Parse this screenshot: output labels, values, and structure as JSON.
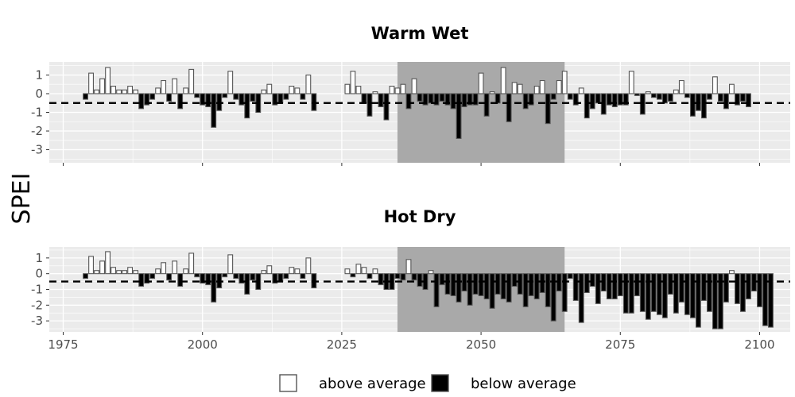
{
  "chart_data": {
    "type": "bar",
    "ylabel": "SPEI",
    "x_ticks": [
      1975,
      2000,
      2025,
      2050,
      2075,
      2100
    ],
    "y_ticks": [
      1,
      0,
      -1,
      -2,
      -3
    ],
    "ylim": [
      -3.7,
      1.7
    ],
    "xlim": [
      1972.5,
      2105.5
    ],
    "threshold": -0.5,
    "highlight_range": [
      2035,
      2065
    ],
    "legend": {
      "position": "bottom",
      "entries": [
        {
          "label": "above average",
          "fill": "#ffffff"
        },
        {
          "label": "below average",
          "fill": "#000000"
        }
      ]
    },
    "colors": {
      "above": "#ffffff",
      "below": "#000000",
      "bar_border": "#555555",
      "panel_bg": "#ebebeb",
      "highlight": "#a9a9a9",
      "grid": "#ffffff"
    },
    "panels": [
      {
        "title": "Warm Wet",
        "segments": [
          {
            "start": 1979,
            "values": [
              -0.3,
              1.1,
              0.2,
              0.8,
              1.4,
              0.4,
              0.2,
              0.2,
              0.4,
              0.2,
              -0.8,
              -0.6,
              -0.3,
              0.3,
              0.7,
              -0.4,
              0.8,
              -0.8,
              0.3,
              1.3,
              -0.2,
              -0.6,
              -0.7,
              -1.8,
              -0.9,
              -0.2,
              1.2,
              -0.3,
              -0.6,
              -1.3,
              -0.4,
              -1.0,
              0.2,
              0.5,
              -0.6,
              -0.5,
              -0.3,
              0.4,
              0.3,
              -0.3,
              1.0,
              -0.9
            ]
          },
          {
            "start": 2026,
            "values": [
              0.5,
              1.2,
              0.4,
              -0.5,
              -1.2,
              0.1,
              -0.7,
              -1.4,
              0.4,
              0.3,
              0.5,
              -0.8,
              0.8,
              -0.4,
              -0.6,
              -0.5,
              -0.6,
              -0.4,
              -0.6,
              -0.8,
              -2.4,
              -0.7,
              -0.6,
              -0.6,
              1.1,
              -1.2,
              0.1,
              -0.5,
              1.4,
              -1.5,
              0.6,
              0.5,
              -0.8,
              -0.6,
              0.4,
              0.7,
              -1.6,
              -0.3,
              0.7,
              1.2,
              -0.3,
              -0.6,
              0.3,
              -1.3,
              -0.8,
              -0.5,
              -1.1,
              -0.6,
              -0.7,
              -0.6,
              -0.6,
              1.2,
              -0.1,
              -1.1,
              0.1,
              -0.2,
              -0.3,
              -0.5,
              -0.4,
              0.2,
              0.7,
              -0.2,
              -1.2,
              -0.9,
              -1.3,
              -0.3,
              0.9,
              -0.4,
              -0.8,
              0.5,
              -0.6,
              -0.4,
              -0.7
            ]
          }
        ]
      },
      {
        "title": "Hot Dry",
        "segments": [
          {
            "start": 1979,
            "values": [
              -0.3,
              1.1,
              0.2,
              0.8,
              1.4,
              0.4,
              0.2,
              0.2,
              0.4,
              0.2,
              -0.8,
              -0.6,
              -0.3,
              0.3,
              0.7,
              -0.4,
              0.8,
              -0.8,
              0.3,
              1.3,
              -0.2,
              -0.6,
              -0.7,
              -1.8,
              -0.9,
              -0.2,
              1.2,
              -0.3,
              -0.6,
              -1.3,
              -0.4,
              -1.0,
              0.2,
              0.5,
              -0.6,
              -0.5,
              -0.3,
              0.4,
              0.3,
              -0.3,
              1.0,
              -0.9
            ]
          },
          {
            "start": 2026,
            "values": [
              0.3,
              -0.2,
              0.6,
              0.4,
              -0.3,
              0.3,
              -0.7,
              -1.0,
              -1.0,
              -0.3,
              -0.4,
              0.9,
              -0.4,
              -0.8,
              -1.0,
              0.2,
              -2.1,
              -0.7,
              -1.3,
              -1.4,
              -1.8,
              -1.1,
              -2.0,
              -1.3,
              -1.4,
              -1.6,
              -2.2,
              -1.3,
              -1.6,
              -1.8,
              -0.8,
              -1.3,
              -2.1,
              -1.4,
              -1.6,
              -1.2,
              -2.1,
              -3.0,
              -1.1,
              -2.4,
              -0.3,
              -1.7,
              -3.1,
              -1.2,
              -0.8,
              -1.9,
              -1.1,
              -1.6,
              -1.6,
              -1.4,
              -2.5,
              -2.5,
              -1.4,
              -2.4,
              -2.9,
              -2.4,
              -2.6,
              -2.8,
              -1.3,
              -2.5,
              -1.8,
              -2.6,
              -2.8,
              -3.4,
              -1.7,
              -2.4,
              -3.5,
              -3.5,
              -1.8,
              0.2,
              -1.9,
              -2.4,
              -1.6,
              -1.1,
              -2.1,
              -3.3,
              -3.4
            ]
          }
        ]
      }
    ]
  }
}
